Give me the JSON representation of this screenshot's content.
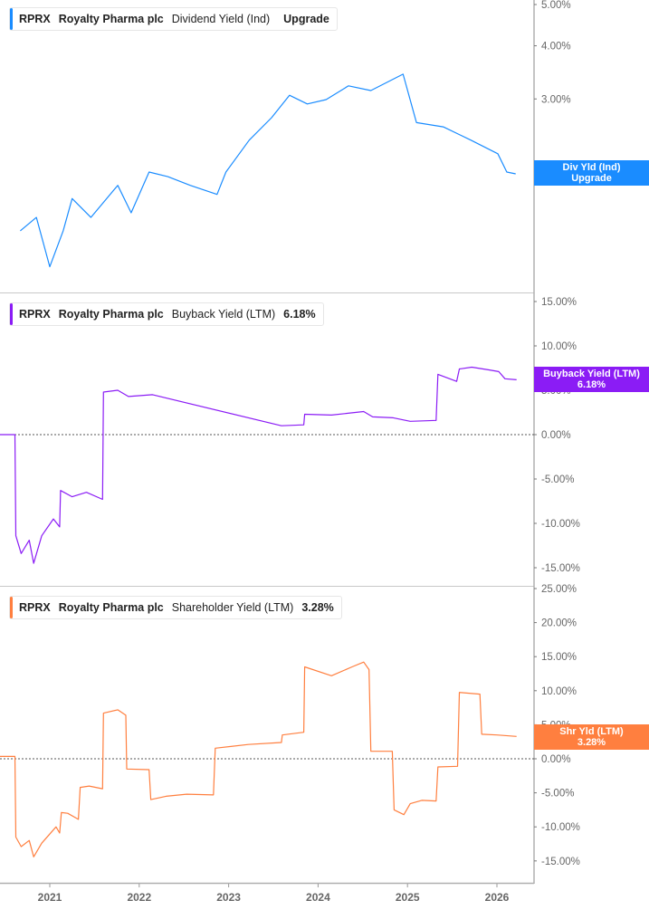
{
  "chart_data": [
    {
      "type": "line",
      "ticker": "RPRX",
      "company": "Royalty Pharma plc",
      "metric": "Dividend Yield (Ind)",
      "value_label": "Upgrade",
      "tag": [
        "Div Yld (Ind)",
        "Upgrade"
      ],
      "color": "#1a8cff",
      "yscale": "log",
      "ylim": [
        1.1,
        5.1
      ],
      "yticks": [
        {
          "v": 5,
          "label": "5.00%"
        },
        {
          "v": 4,
          "label": "4.00%"
        },
        {
          "v": 3,
          "label": "3.00%"
        },
        {
          "v": 2,
          "label": "2.00%"
        }
      ],
      "x": [
        2020.67,
        2020.85,
        2021.0,
        2021.15,
        2021.25,
        2021.46,
        2021.76,
        2021.91,
        2022.11,
        2022.32,
        2022.57,
        2022.87,
        2022.97,
        2023.23,
        2023.48,
        2023.68,
        2023.88,
        2024.09,
        2024.34,
        2024.59,
        2024.95,
        2025.1,
        2025.4,
        2025.71,
        2026.01,
        2026.11,
        2026.21
      ],
      "y": [
        1.47,
        1.58,
        1.21,
        1.47,
        1.75,
        1.58,
        1.88,
        1.62,
        2.02,
        1.97,
        1.88,
        1.79,
        2.02,
        2.4,
        2.71,
        3.06,
        2.92,
        2.99,
        3.22,
        3.14,
        3.43,
        2.64,
        2.58,
        2.4,
        2.23,
        2.02,
        2.0
      ]
    },
    {
      "type": "line",
      "ticker": "RPRX",
      "company": "Royalty Pharma plc",
      "metric": "Buyback Yield (LTM)",
      "value_label": "6.18%",
      "tag": [
        "Buyback Yield (LTM)",
        "6.18%"
      ],
      "color": "#8b1cf5",
      "ylim": [
        -16,
        16
      ],
      "zero_line": true,
      "yticks": [
        {
          "v": 15,
          "label": "15.00%"
        },
        {
          "v": 10,
          "label": "10.00%"
        },
        {
          "v": 5,
          "label": "5.00%"
        },
        {
          "v": 0,
          "label": "0.00%"
        },
        {
          "v": -5,
          "label": "-5.00%"
        },
        {
          "v": -10,
          "label": "-10.00%"
        },
        {
          "v": -15,
          "label": "-15.00%"
        }
      ],
      "x": [
        2020.44,
        2020.61,
        2020.62,
        2020.68,
        2020.77,
        2020.82,
        2020.91,
        2021.04,
        2021.11,
        2021.12,
        2021.25,
        2021.41,
        2021.59,
        2021.6,
        2021.76,
        2021.88,
        2022.15,
        2023.59,
        2023.84,
        2023.85,
        2024.15,
        2024.51,
        2024.61,
        2024.84,
        2025.03,
        2025.32,
        2025.34,
        2025.55,
        2025.58,
        2025.72,
        2025.91,
        2026.02,
        2026.09,
        2026.22
      ],
      "y": [
        0,
        0,
        -11.4,
        -13.4,
        -11.9,
        -14.5,
        -11.4,
        -9.5,
        -10.4,
        -6.3,
        -7.0,
        -6.5,
        -7.3,
        4.8,
        5.0,
        4.3,
        4.5,
        1.0,
        1.1,
        2.3,
        2.2,
        2.6,
        2.0,
        1.9,
        1.5,
        1.6,
        6.8,
        6.0,
        7.4,
        7.6,
        7.3,
        7.1,
        6.3,
        6.18
      ]
    },
    {
      "type": "line",
      "ticker": "RPRX",
      "company": "Royalty Pharma plc",
      "metric": "Shareholder Yield (LTM)",
      "value_label": "3.28%",
      "tag": [
        "Shr Yld (LTM)",
        "3.28%"
      ],
      "color": "#ff7f3f",
      "ylim": [
        -16,
        25.3
      ],
      "zero_line": true,
      "yticks": [
        {
          "v": 25,
          "label": "25.00%"
        },
        {
          "v": 20,
          "label": "20.00%"
        },
        {
          "v": 15,
          "label": "15.00%"
        },
        {
          "v": 10,
          "label": "10.00%"
        },
        {
          "v": 5,
          "label": "5.00%"
        },
        {
          "v": 0,
          "label": "0.00%"
        },
        {
          "v": -5,
          "label": "-5.00%"
        },
        {
          "v": -10,
          "label": "-10.00%"
        },
        {
          "v": -15,
          "label": "-15.00%"
        }
      ],
      "x": [
        2020.44,
        2020.61,
        2020.62,
        2020.68,
        2020.77,
        2020.82,
        2020.91,
        2021.07,
        2021.11,
        2021.13,
        2021.2,
        2021.32,
        2021.34,
        2021.44,
        2021.59,
        2021.6,
        2021.76,
        2021.85,
        2021.86,
        2022.11,
        2022.13,
        2022.3,
        2022.53,
        2022.83,
        2022.85,
        2023.22,
        2023.59,
        2023.6,
        2023.84,
        2023.85,
        2024.15,
        2024.38,
        2024.51,
        2024.57,
        2024.59,
        2024.83,
        2024.85,
        2024.96,
        2025.03,
        2025.16,
        2025.32,
        2025.34,
        2025.56,
        2025.58,
        2025.81,
        2025.83,
        2026.0,
        2026.22
      ],
      "y": [
        0.35,
        0.35,
        -11.5,
        -12.9,
        -12.0,
        -14.4,
        -12.4,
        -10.0,
        -10.9,
        -7.9,
        -8.0,
        -8.9,
        -4.2,
        -4.0,
        -4.4,
        6.7,
        7.2,
        6.4,
        -1.5,
        -1.6,
        -6.0,
        -5.5,
        -5.2,
        -5.3,
        1.55,
        2.1,
        2.4,
        3.5,
        3.9,
        13.5,
        12.2,
        13.5,
        14.2,
        13.1,
        1.1,
        1.1,
        -7.5,
        -8.2,
        -6.6,
        -6.1,
        -6.2,
        -1.2,
        -1.1,
        9.75,
        9.5,
        3.6,
        3.5,
        3.28
      ]
    }
  ],
  "x_axis": {
    "ticks": [
      {
        "v": 2021,
        "label": "2021"
      },
      {
        "v": 2022,
        "label": "2022"
      },
      {
        "v": 2023,
        "label": "2023"
      },
      {
        "v": 2024,
        "label": "2024"
      },
      {
        "v": 2025,
        "label": "2025"
      },
      {
        "v": 2026,
        "label": "2026"
      }
    ]
  }
}
